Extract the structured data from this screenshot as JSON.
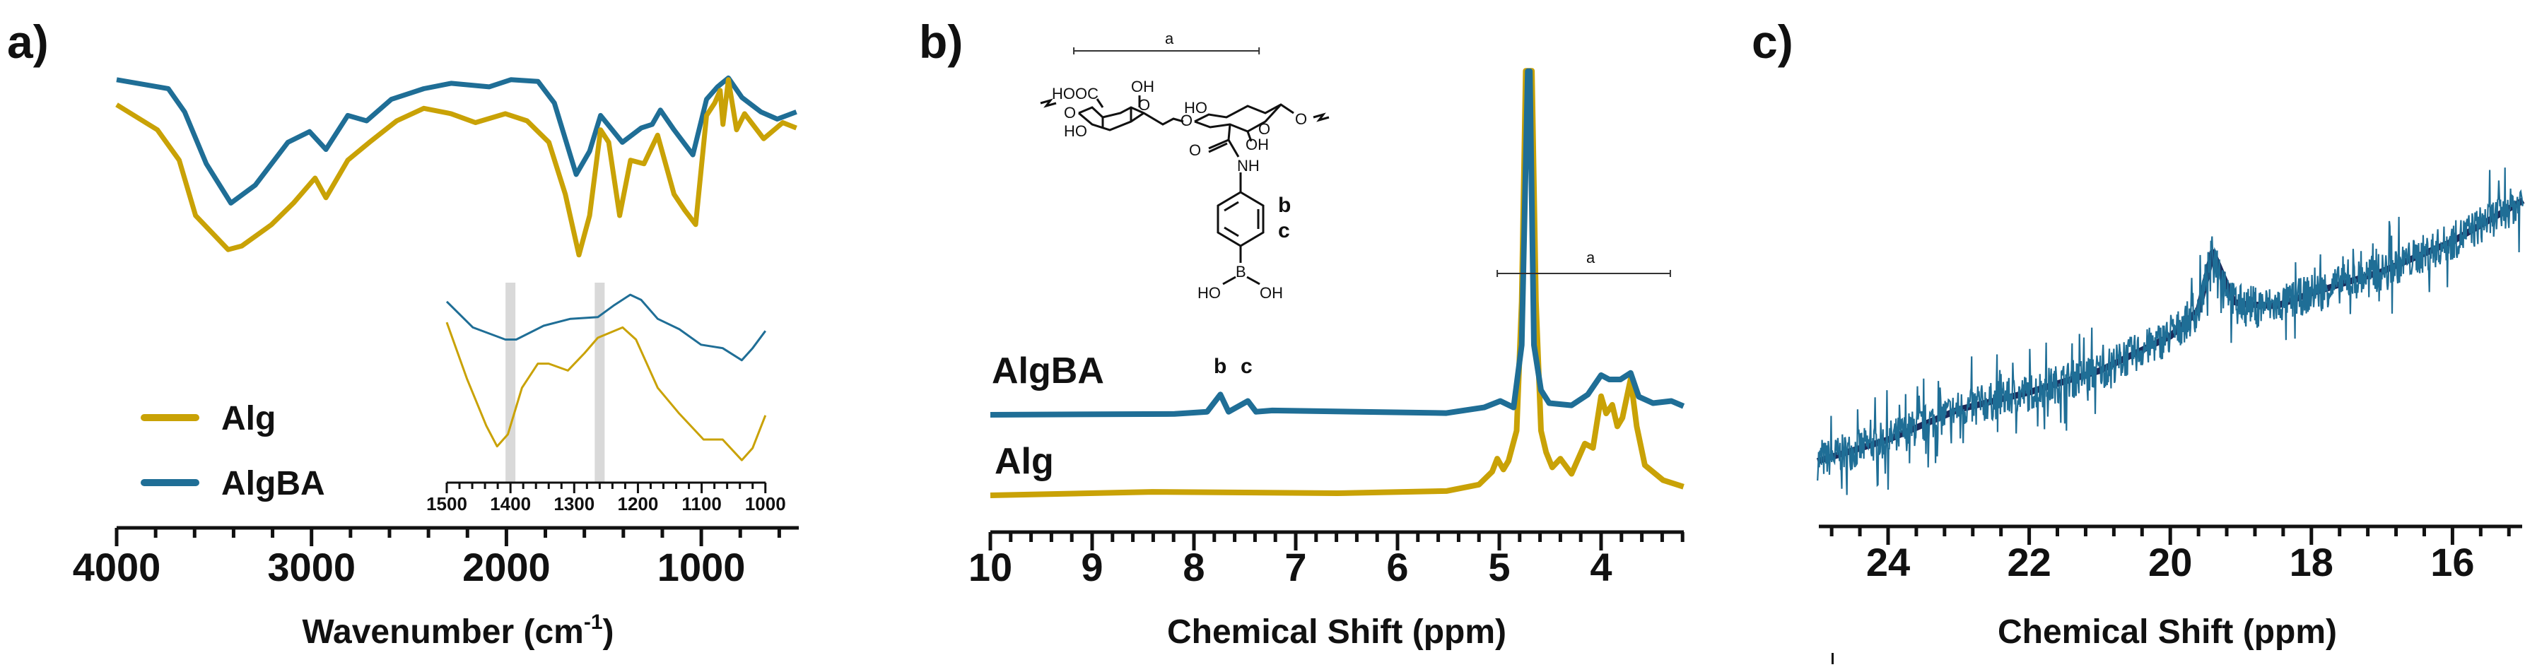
{
  "colors": {
    "alg": "#C9A206",
    "algba": "#1F6E96",
    "algba_dark": "#1B2A5A",
    "highlight": "#D9D9D9"
  },
  "panel_labels": {
    "a": "a)",
    "b": "b)",
    "c": "c)"
  },
  "structure_labels": {
    "hooc": "HOOC",
    "oh1": "OH",
    "o1": "O",
    "o_left": "O",
    "ho1": "HO",
    "o_bridge": "O",
    "ho2": "HO",
    "o2": "O",
    "oh2": "OH",
    "o_right": "O",
    "o_carbonyl": "O",
    "nh": "NH",
    "b": "b",
    "c": "c",
    "boron": "B",
    "ho_b": "HO",
    "oh_b": "OH"
  },
  "chart_data": [
    {
      "panel": "a",
      "type": "line",
      "xlabel": "Wavenumber (cm",
      "xlabel_sup": "-1",
      "xlabel_end": ")",
      "xlim": [
        4000,
        500
      ],
      "x_ticks": [
        4000,
        3000,
        2000,
        1000
      ],
      "x_tick_labels": [
        "4000",
        "3000",
        "2000",
        "1000"
      ],
      "legend": {
        "position": "bottom-left",
        "entries": [
          "Alg",
          "AlgBA"
        ]
      },
      "series": [
        {
          "name": "Alg",
          "points": [
            [
              4000,
              86
            ],
            [
              3791,
              72
            ],
            [
              3679,
              55
            ],
            [
              3595,
              24
            ],
            [
              3428,
              5
            ],
            [
              3358,
              7
            ],
            [
              3205,
              19
            ],
            [
              3093,
              31
            ],
            [
              2982,
              45
            ],
            [
              2926,
              34
            ],
            [
              2814,
              55
            ],
            [
              2703,
              65
            ],
            [
              2563,
              77
            ],
            [
              2424,
              84
            ],
            [
              2284,
              81
            ],
            [
              2159,
              76
            ],
            [
              2005,
              81
            ],
            [
              1894,
              77
            ],
            [
              1782,
              65
            ],
            [
              1698,
              36
            ],
            [
              1628,
              2
            ],
            [
              1573,
              24
            ],
            [
              1517,
              72
            ],
            [
              1475,
              65
            ],
            [
              1419,
              24
            ],
            [
              1363,
              55
            ],
            [
              1294,
              53
            ],
            [
              1224,
              69
            ],
            [
              1140,
              36
            ],
            [
              1085,
              27
            ],
            [
              1029,
              19
            ],
            [
              973,
              80
            ],
            [
              931,
              87
            ],
            [
              903,
              94
            ],
            [
              889,
              75
            ],
            [
              861,
              100
            ],
            [
              819,
              72
            ],
            [
              778,
              81
            ],
            [
              680,
              67
            ],
            [
              582,
              76
            ],
            [
              512,
              73
            ]
          ]
        },
        {
          "name": "AlgBA",
          "points": [
            [
              4000,
              100
            ],
            [
              3735,
              95
            ],
            [
              3651,
              82
            ],
            [
              3540,
              53
            ],
            [
              3414,
              31
            ],
            [
              3289,
              41
            ],
            [
              3121,
              65
            ],
            [
              3010,
              71
            ],
            [
              2926,
              61
            ],
            [
              2814,
              80
            ],
            [
              2717,
              77
            ],
            [
              2591,
              89
            ],
            [
              2424,
              95
            ],
            [
              2284,
              98
            ],
            [
              2089,
              96
            ],
            [
              1977,
              100
            ],
            [
              1838,
              99
            ],
            [
              1754,
              87
            ],
            [
              1642,
              47
            ],
            [
              1573,
              60
            ],
            [
              1517,
              80
            ],
            [
              1405,
              65
            ],
            [
              1308,
              73
            ],
            [
              1252,
              75
            ],
            [
              1210,
              83
            ],
            [
              1140,
              72
            ],
            [
              1043,
              58
            ],
            [
              973,
              89
            ],
            [
              917,
              96
            ],
            [
              861,
              101
            ],
            [
              791,
              90
            ],
            [
              694,
              82
            ],
            [
              610,
              78
            ],
            [
              512,
              82
            ]
          ]
        }
      ]
    },
    {
      "panel": "a-inset",
      "type": "line",
      "xlim": [
        1500,
        1000
      ],
      "x_ticks": [
        1500,
        1400,
        1300,
        1200,
        1100,
        1000
      ],
      "x_tick_labels": [
        "1500",
        "1400",
        "1300",
        "1200",
        "1100",
        "1000"
      ],
      "highlight_bands": [
        1400,
        1260
      ],
      "series": [
        {
          "name": "Alg",
          "points": [
            [
              1500,
              88
            ],
            [
              1468,
              55
            ],
            [
              1438,
              28
            ],
            [
              1421,
              16
            ],
            [
              1404,
              23
            ],
            [
              1382,
              50
            ],
            [
              1357,
              64
            ],
            [
              1340,
              64
            ],
            [
              1310,
              60
            ],
            [
              1284,
              70
            ],
            [
              1263,
              79
            ],
            [
              1224,
              85
            ],
            [
              1203,
              78
            ],
            [
              1169,
              50
            ],
            [
              1135,
              35
            ],
            [
              1097,
              20
            ],
            [
              1067,
              20
            ],
            [
              1037,
              8
            ],
            [
              1020,
              15
            ],
            [
              1000,
              34
            ]
          ]
        },
        {
          "name": "AlgBA",
          "points": [
            [
              1500,
              100
            ],
            [
              1459,
              85
            ],
            [
              1408,
              78
            ],
            [
              1391,
              78
            ],
            [
              1348,
              86
            ],
            [
              1306,
              90
            ],
            [
              1263,
              91
            ],
            [
              1237,
              98
            ],
            [
              1212,
              104
            ],
            [
              1195,
              101
            ],
            [
              1169,
              90
            ],
            [
              1135,
              84
            ],
            [
              1101,
              75
            ],
            [
              1067,
              73
            ],
            [
              1037,
              66
            ],
            [
              1020,
              73
            ],
            [
              1000,
              83
            ]
          ]
        }
      ]
    },
    {
      "panel": "b",
      "type": "line",
      "xlabel": "Chemical Shift (ppm)",
      "xlim": [
        10,
        3.2
      ],
      "x_ticks": [
        10,
        9,
        8,
        7,
        6,
        5,
        4
      ],
      "x_tick_labels": [
        "10",
        "9",
        "8",
        "7",
        "6",
        "5",
        "4"
      ],
      "series_labels": [
        "AlgBA",
        "Alg"
      ],
      "annotations": {
        "peak_b": "b",
        "peak_c": "c",
        "bracket_top": "a",
        "bracket_bottom": "a"
      },
      "brackets": [
        {
          "label": "a",
          "from": 9.18,
          "to": 7.36
        },
        {
          "label": "a",
          "from": 5.02,
          "to": 3.32
        }
      ],
      "series": [
        {
          "name": "Alg",
          "points": [
            [
              10,
              0
            ],
            [
              8.41,
              0.8
            ],
            [
              6.59,
              0.5
            ],
            [
              5.52,
              1
            ],
            [
              5.2,
              2.5
            ],
            [
              5.07,
              5.5
            ],
            [
              5.02,
              8.5
            ],
            [
              4.96,
              6
            ],
            [
              4.91,
              8
            ],
            [
              4.83,
              15
            ],
            [
              4.78,
              45
            ],
            [
              4.74,
              98.5
            ],
            [
              4.68,
              98.5
            ],
            [
              4.64,
              45
            ],
            [
              4.59,
              15
            ],
            [
              4.54,
              10
            ],
            [
              4.48,
              6.5
            ],
            [
              4.4,
              8.5
            ],
            [
              4.29,
              5
            ],
            [
              4.16,
              12
            ],
            [
              4.08,
              11
            ],
            [
              4.0,
              23
            ],
            [
              3.95,
              19
            ],
            [
              3.89,
              21
            ],
            [
              3.84,
              16
            ],
            [
              3.79,
              18
            ],
            [
              3.71,
              27
            ],
            [
              3.65,
              16
            ],
            [
              3.57,
              7
            ],
            [
              3.39,
              3.5
            ],
            [
              3.19,
              2
            ]
          ]
        },
        {
          "name": "AlgBA",
          "points": [
            [
              10,
              0
            ],
            [
              8.19,
              0.2
            ],
            [
              7.87,
              0.7
            ],
            [
              7.74,
              4.7
            ],
            [
              7.66,
              0.7
            ],
            [
              7.47,
              3.2
            ],
            [
              7.39,
              0.7
            ],
            [
              7.23,
              1
            ],
            [
              5.52,
              0.4
            ],
            [
              5.15,
              1.7
            ],
            [
              4.99,
              3.2
            ],
            [
              4.86,
              1.7
            ],
            [
              4.78,
              16.2
            ],
            [
              4.72,
              79.7
            ],
            [
              4.7,
              79.7
            ],
            [
              4.66,
              16.2
            ],
            [
              4.59,
              5.7
            ],
            [
              4.51,
              2.7
            ],
            [
              4.29,
              2.2
            ],
            [
              4.13,
              4.7
            ],
            [
              4.0,
              9.2
            ],
            [
              3.92,
              8.2
            ],
            [
              3.81,
              8.2
            ],
            [
              3.71,
              9.7
            ],
            [
              3.63,
              4.2
            ],
            [
              3.49,
              2.7
            ],
            [
              3.31,
              3.2
            ],
            [
              3.19,
              2
            ]
          ]
        }
      ]
    },
    {
      "panel": "c",
      "type": "line",
      "xlabel": "Chemical Shift (ppm)",
      "xlim": [
        25,
        15
      ],
      "x_ticks": [
        24,
        22,
        20,
        18,
        16
      ],
      "x_tick_labels": [
        "24",
        "22",
        "20",
        "18",
        "16"
      ],
      "series": [
        {
          "name": "",
          "points": [
            [
              25,
              13
            ],
            [
              24,
              18
            ],
            [
              23,
              25
            ],
            [
              22,
              29
            ],
            [
              21,
              34
            ],
            [
              20,
              42
            ],
            [
              19.6,
              48
            ],
            [
              19.4,
              61.5
            ],
            [
              19.1,
              50
            ],
            [
              19,
              49.5
            ],
            [
              18.5,
              49
            ],
            [
              18,
              52
            ],
            [
              17,
              57
            ],
            [
              16,
              64
            ],
            [
              15,
              73.5
            ]
          ]
        }
      ]
    }
  ]
}
